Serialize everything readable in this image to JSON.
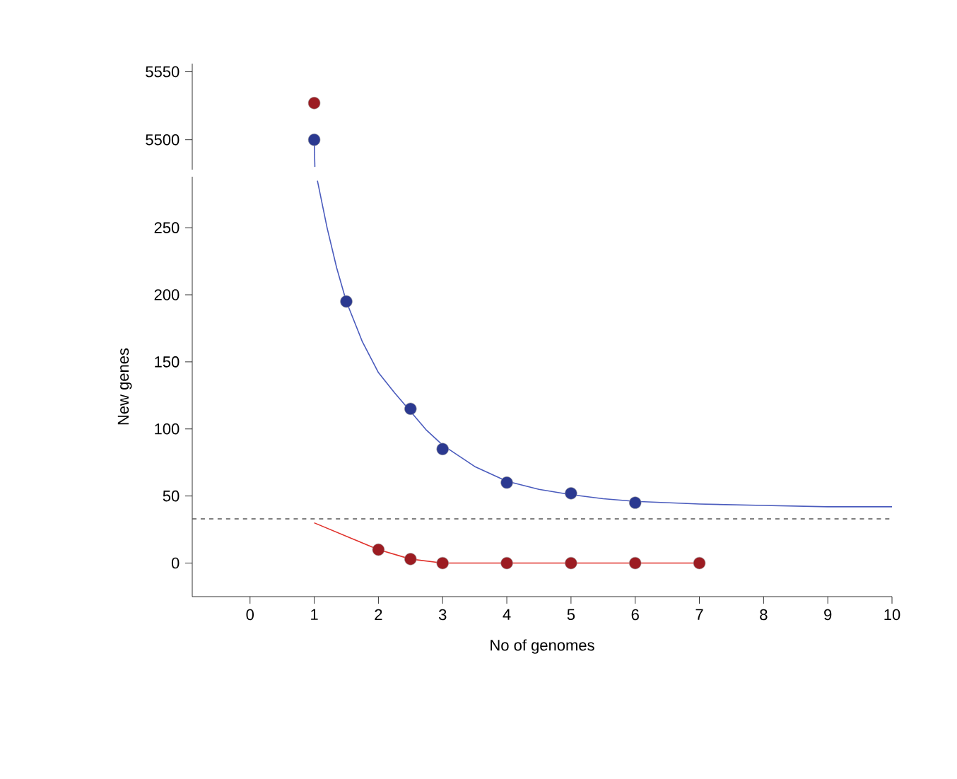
{
  "chart_data": [
    {
      "type": "scatter",
      "tick_labels": "y",
      "xlim": [
        -0.9,
        10
      ],
      "ylim": [
        5478,
        5556
      ],
      "yticks": [
        5500,
        5550
      ],
      "series": [
        {
          "type": "line",
          "marker": "none",
          "color": "#4a5bbd",
          "x": [
            1,
            1.01
          ],
          "values": [
            5500,
            5480
          ]
        },
        {
          "marker": "circle",
          "color": "#2b3990",
          "x": [
            1
          ],
          "values": [
            5500
          ]
        },
        {
          "marker": "circle",
          "color": "#9c1c22",
          "x": [
            1
          ],
          "values": [
            5527
          ]
        }
      ]
    },
    {
      "type": "scatter",
      "xlabel": "No of genomes",
      "ylabel": "New genes",
      "xlim": [
        -0.9,
        10
      ],
      "ylim": [
        -25,
        288
      ],
      "xticks": [
        0,
        1,
        2,
        3,
        4,
        5,
        6,
        7,
        8,
        9,
        10
      ],
      "yticks": [
        0,
        50,
        100,
        150,
        200,
        250
      ],
      "ref_lines": [
        {
          "axis": "y",
          "value": 33,
          "color": "#555555",
          "line_style": "dashed"
        }
      ],
      "series": [
        {
          "type": "line",
          "marker": "none",
          "color": "#4a5bbd",
          "x": [
            1.05,
            1.2,
            1.35,
            1.5,
            1.75,
            2,
            2.25,
            2.5,
            2.75,
            3,
            3.5,
            4,
            4.5,
            5,
            5.5,
            6,
            7,
            8,
            9,
            10
          ],
          "values": [
            285,
            250,
            220,
            195,
            165,
            142,
            127,
            113,
            99,
            88,
            72,
            61,
            55,
            51,
            48,
            46,
            44,
            43,
            42,
            42
          ]
        },
        {
          "type": "line",
          "marker": "none",
          "color": "#e0302a",
          "x": [
            1,
            2,
            2.5,
            3,
            4,
            5,
            6,
            7
          ],
          "values": [
            30,
            10,
            3,
            0,
            0,
            0,
            0,
            0
          ]
        },
        {
          "marker": "circle",
          "color": "#2b3990",
          "x": [
            1.5,
            2.5,
            3,
            4,
            5,
            6
          ],
          "values": [
            195,
            115,
            85,
            60,
            52,
            45
          ]
        },
        {
          "marker": "circle",
          "color": "#9c1c22",
          "x": [
            2,
            2.5,
            3,
            4,
            5,
            6,
            7
          ],
          "values": [
            10,
            3,
            0,
            0,
            0,
            0,
            0
          ]
        }
      ]
    }
  ]
}
